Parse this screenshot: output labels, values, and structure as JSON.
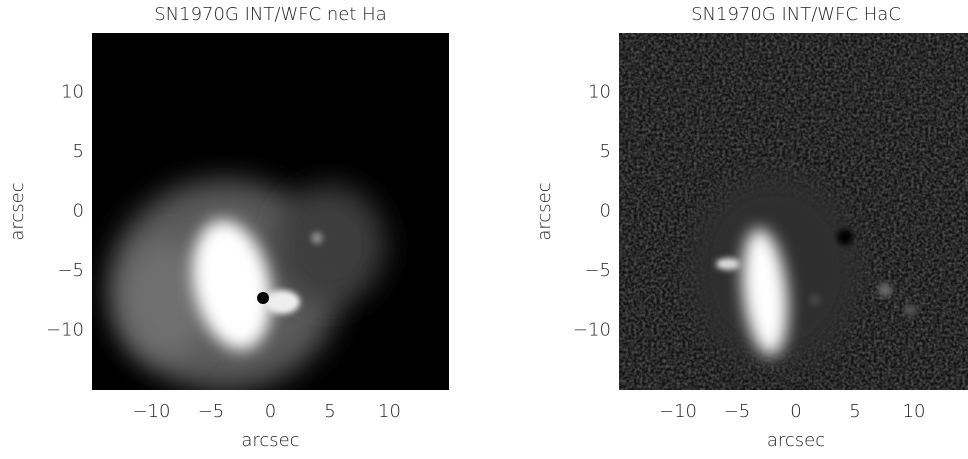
{
  "chart_data": [
    {
      "type": "image",
      "title": "SN1970G INT/WFC net Ha",
      "xlabel": "arcsec",
      "ylabel": "arcsec",
      "xlim": [
        -15,
        15
      ],
      "ylim": [
        -15,
        15
      ],
      "xticks": [
        {
          "value": -10,
          "label": "−10"
        },
        {
          "value": -5,
          "label": "−5"
        },
        0,
        5,
        10
      ],
      "yticks": [
        {
          "value": -10,
          "label": "−10"
        },
        {
          "value": -5,
          "label": "−5"
        },
        0,
        5,
        10
      ]
    },
    {
      "type": "image",
      "title": "SN1970G INT/WFC HaC",
      "xlabel": "arcsec",
      "ylabel": "arcsec",
      "xlim": [
        -15,
        15
      ],
      "ylim": [
        -15,
        15
      ],
      "xticks": [
        {
          "value": -10,
          "label": "−10"
        },
        {
          "value": -5,
          "label": "−5"
        },
        0,
        5,
        10
      ],
      "yticks": [
        {
          "value": -10,
          "label": "−10"
        },
        {
          "value": -5,
          "label": "−5"
        },
        0,
        5,
        10
      ]
    }
  ]
}
